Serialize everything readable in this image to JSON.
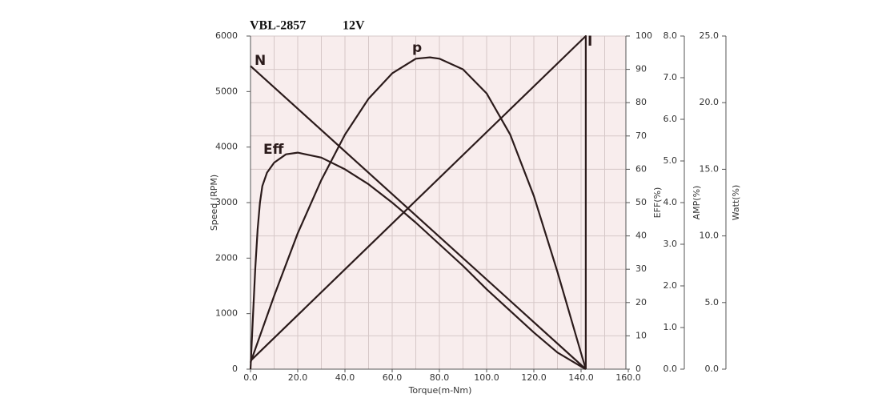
{
  "chart_data": {
    "type": "line",
    "title": "VBL-2857",
    "subtitle": "12V",
    "x_label": "Torque(m-Nm)",
    "y_label": "Speed (RPM)",
    "y2_label": "EFF(%)",
    "y3_label": "AMP(%)",
    "y4_label": "Watt(%)",
    "xlim": [
      0,
      160
    ],
    "xticks": [
      {
        "value": 0,
        "label": "0.0"
      },
      {
        "value": 20,
        "label": "20.0"
      },
      {
        "value": 40,
        "label": "40.0"
      },
      {
        "value": 60,
        "label": "60.0"
      },
      {
        "value": 80,
        "label": "80.0"
      },
      {
        "value": 100,
        "label": "100.0"
      },
      {
        "value": 120,
        "label": "120.0"
      },
      {
        "value": 140,
        "label": "140.0"
      },
      {
        "value": 160,
        "label": "160.0"
      }
    ],
    "ylim": [
      0,
      6000
    ],
    "yticks": [
      0,
      1000,
      2000,
      3000,
      4000,
      5000,
      6000
    ],
    "y2lim": [
      0,
      100
    ],
    "y2ticks": [
      0,
      10,
      20,
      30,
      40,
      50,
      60,
      70,
      80,
      90,
      100
    ],
    "y3lim": [
      0,
      8
    ],
    "y3ticks": [
      {
        "value": 0,
        "label": "0.0"
      },
      {
        "value": 1,
        "label": "1.0"
      },
      {
        "value": 2,
        "label": "2.0"
      },
      {
        "value": 3,
        "label": "3.0"
      },
      {
        "value": 4,
        "label": "4.0"
      },
      {
        "value": 5,
        "label": "5.0"
      },
      {
        "value": 6,
        "label": "6.0"
      },
      {
        "value": 7,
        "label": "7.0"
      },
      {
        "value": 8,
        "label": "8.0"
      }
    ],
    "y4lim": [
      0,
      25
    ],
    "y4ticks": [
      {
        "value": 0,
        "label": "0.0"
      },
      {
        "value": 5,
        "label": "5.0"
      },
      {
        "value": 10,
        "label": "10.0"
      },
      {
        "value": 15,
        "label": "15.0"
      },
      {
        "value": 20,
        "label": "20.0"
      },
      {
        "value": 25,
        "label": "25.0"
      }
    ],
    "grid": true,
    "series": [
      {
        "name": "N",
        "color": "#2b1b1b",
        "axis": "y",
        "x": [
          0,
          142
        ],
        "values": [
          5460,
          0
        ]
      },
      {
        "name": "Eff",
        "color": "#2b1b1b",
        "axis": "y2",
        "x": [
          0,
          1,
          2,
          3,
          4,
          5,
          7,
          10,
          15,
          20,
          30,
          40,
          50,
          60,
          70,
          80,
          90,
          100,
          110,
          120,
          130,
          140,
          142
        ],
        "values": [
          0,
          15,
          30,
          42,
          50,
          55,
          59,
          62,
          64.5,
          65,
          63.5,
          60,
          55.5,
          50,
          44,
          37.5,
          31,
          24,
          17.5,
          11,
          5,
          0.8,
          0
        ]
      },
      {
        "name": "p",
        "color": "#2b1b1b",
        "axis": "y4",
        "x": [
          0,
          10,
          20,
          30,
          40,
          50,
          60,
          70,
          76,
          80,
          90,
          100,
          110,
          120,
          130,
          140,
          142
        ],
        "values": [
          0.5,
          5.5,
          10.2,
          14.2,
          17.6,
          20.3,
          22.2,
          23.3,
          23.4,
          23.3,
          22.5,
          20.7,
          17.6,
          13.0,
          7.3,
          1.2,
          0
        ]
      },
      {
        "name": "I",
        "color": "#2b1b1b",
        "axis": "y3",
        "x": [
          0,
          142,
          142
        ],
        "values": [
          0.2,
          8.0,
          0
        ]
      }
    ]
  }
}
